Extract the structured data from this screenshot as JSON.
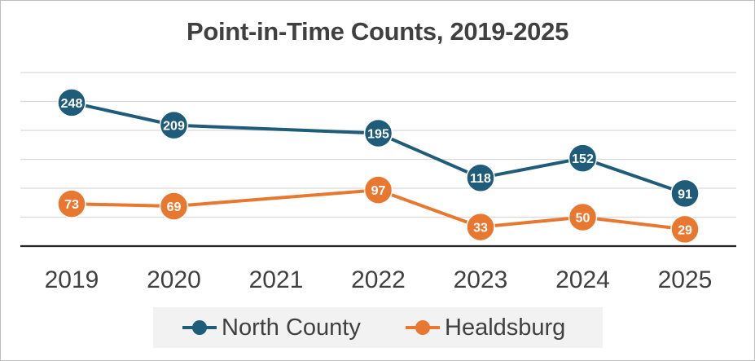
{
  "chart_data": {
    "type": "line",
    "title": "Point-in-Time Counts, 2019-2025",
    "categories": [
      "2019",
      "2020",
      "2021",
      "2022",
      "2023",
      "2024",
      "2025"
    ],
    "ylim": [
      0,
      300
    ],
    "grid": true,
    "legend_position": "bottom",
    "series": [
      {
        "name": "North County",
        "color": "#1f5c7a",
        "values": [
          248,
          209,
          null,
          195,
          118,
          152,
          91
        ]
      },
      {
        "name": "Healdsburg",
        "color": "#e8782f",
        "values": [
          73,
          69,
          null,
          97,
          33,
          50,
          29
        ]
      }
    ]
  }
}
